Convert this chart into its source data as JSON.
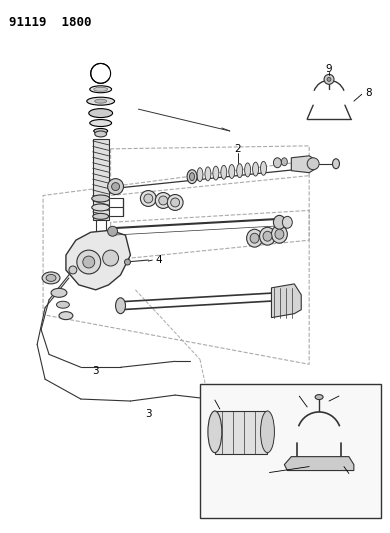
{
  "title": "91119  1800",
  "bg_color": "#ffffff",
  "line_color": "#000000",
  "gray_dark": "#333333",
  "gray_mid": "#666666",
  "gray_light": "#aaaaaa",
  "figsize": [
    3.9,
    5.33
  ],
  "dpi": 100,
  "label_fs": 7.5,
  "title_fs": 9
}
